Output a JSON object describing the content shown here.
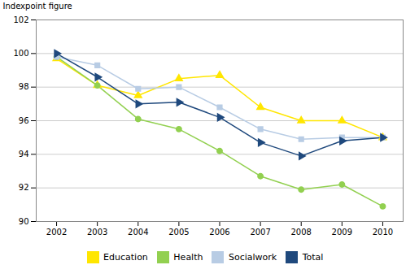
{
  "chart_data": {
    "type": "line",
    "ylabel": "Indexpoint figure",
    "x": [
      2002,
      2003,
      2004,
      2005,
      2006,
      2007,
      2008,
      2009,
      2010
    ],
    "series": [
      {
        "name": "Education",
        "color": "#ffe600",
        "marker": "triangle-up",
        "values": [
          99.7,
          98.1,
          97.5,
          98.5,
          98.7,
          96.8,
          96.0,
          96.0,
          95.0
        ]
      },
      {
        "name": "Health",
        "color": "#92d050",
        "marker": "circle",
        "values": [
          99.8,
          98.1,
          96.1,
          95.5,
          94.2,
          92.7,
          91.9,
          92.2,
          90.9
        ]
      },
      {
        "name": "Socialwork",
        "color": "#b8cce4",
        "marker": "square",
        "values": [
          99.8,
          99.3,
          97.9,
          98.0,
          96.8,
          95.5,
          94.9,
          95.0,
          95.0
        ]
      },
      {
        "name": "Total",
        "color": "#1f497d",
        "marker": "triangle-right",
        "values": [
          100.0,
          98.6,
          97.0,
          97.1,
          96.2,
          94.7,
          93.9,
          94.8,
          95.0
        ]
      }
    ],
    "xlim": [
      2001.5,
      2010.5
    ],
    "xticks": [
      2002,
      2003,
      2004,
      2005,
      2006,
      2007,
      2008,
      2009,
      2010
    ],
    "ylim": [
      90,
      102
    ],
    "yticks": [
      90,
      92,
      94,
      96,
      98,
      100,
      102
    ],
    "grid": true,
    "legend": "bottom"
  }
}
